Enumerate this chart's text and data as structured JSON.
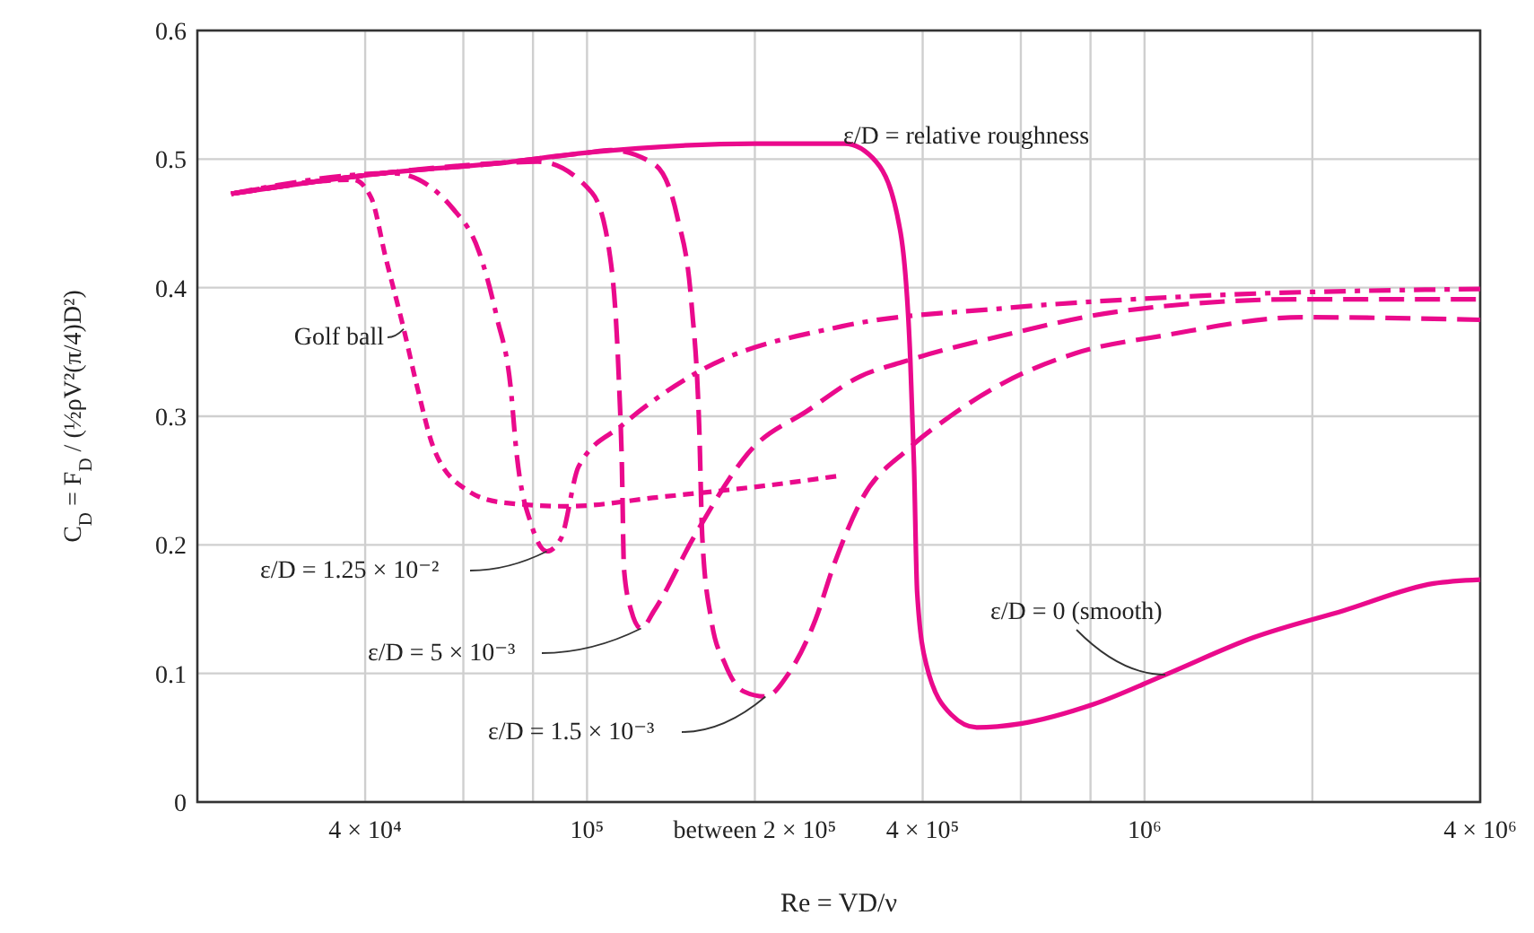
{
  "chart_data": {
    "type": "line",
    "xlabel": "Re = VD/ν",
    "ylabel": "C$_{D}$ = F$_{D}$ / (½ρV²(π/4)D²)",
    "log": "x",
    "grid": true,
    "xlim": [
      20000,
      4000000
    ],
    "xticks": [
      {
        "value": 40000,
        "label": "4 × 10⁴"
      },
      {
        "value": 60000,
        "label": null
      },
      {
        "value": 80000,
        "label": null
      },
      {
        "value": 100000,
        "label": "10⁵"
      },
      {
        "value": 200000,
        "label": "between 2 × 10⁵"
      },
      {
        "value": 400000,
        "label": "4 × 10⁵"
      },
      {
        "value": 600000,
        "label": null
      },
      {
        "value": 800000,
        "label": null
      },
      {
        "value": 1000000,
        "label": "10⁶"
      },
      {
        "value": 2000000,
        "label": null
      },
      {
        "value": 4000000,
        "label": "4 × 10⁶"
      }
    ],
    "ylim": [
      0,
      0.6
    ],
    "yticks": [
      0,
      0.1,
      0.2,
      0.3,
      0.4,
      0.5,
      0.6
    ],
    "annotations": [
      "ε/D = relative roughness"
    ],
    "series": [
      {
        "name": "ε/D = 0 (smooth)",
        "color": "#ea0a8c",
        "line_style": "solid",
        "x": [
          23000,
          43000,
          70000,
          100000,
          200000,
          290000,
          330000,
          365000,
          380000,
          386000,
          391000,
          406000,
          450000,
          500000,
          600000,
          810000,
          1090000,
          1570000,
          2280000,
          3300000,
          4000000
        ],
        "values": [
          0.473,
          0.489,
          0.497,
          0.505,
          0.512,
          0.512,
          0.498,
          0.443,
          0.345,
          0.261,
          0.163,
          0.107,
          0.068,
          0.058,
          0.061,
          0.076,
          0.099,
          0.128,
          0.149,
          0.17,
          0.173
        ]
      },
      {
        "name": "ε/D = 1.5 × 10⁻³",
        "color": "#ea0a8c",
        "line_style": "dashed",
        "x": [
          23000,
          43000,
          70000,
          100000,
          110000,
          132000,
          145000,
          154000,
          159000,
          161000,
          167000,
          177000,
          191000,
          209000,
          230000,
          257000,
          277000,
          309000,
          378000,
          448000,
          559000,
          752000,
          1090000,
          1920000,
          4000000
        ],
        "values": [
          0.473,
          0.489,
          0.497,
          0.505,
          0.507,
          0.496,
          0.456,
          0.387,
          0.289,
          0.205,
          0.142,
          0.107,
          0.086,
          0.082,
          0.1,
          0.142,
          0.184,
          0.233,
          0.275,
          0.3,
          0.326,
          0.349,
          0.363,
          0.377,
          0.375
        ]
      },
      {
        "name": "ε/D = 5 × 10⁻³",
        "color": "#ea0a8c",
        "line_style": "dashed",
        "x": [
          23000,
          43000,
          70000,
          81600,
          102000,
          110000,
          114000,
          115500,
          116500,
          120000,
          125000,
          132000,
          155000,
          198000,
          248000,
          309000,
          367000,
          559000,
          916000,
          1920000,
          4000000
        ],
        "values": [
          0.473,
          0.489,
          0.497,
          0.498,
          0.474,
          0.424,
          0.331,
          0.261,
          0.181,
          0.149,
          0.135,
          0.149,
          0.205,
          0.275,
          0.304,
          0.331,
          0.342,
          0.363,
          0.382,
          0.391,
          0.391
        ]
      },
      {
        "name": "ε/D = 1.25 × 10⁻²",
        "color": "#ea0a8c",
        "line_style": "dashdot",
        "x": [
          23000,
          45000,
          57600,
          64000,
          68900,
          73000,
          74600,
          79700,
          84700,
          89800,
          96600,
          115600,
          159000,
          287000,
          559000,
          1170000,
          4000000
        ],
        "values": [
          0.473,
          0.489,
          0.461,
          0.428,
          0.377,
          0.321,
          0.275,
          0.214,
          0.195,
          0.205,
          0.261,
          0.293,
          0.335,
          0.37,
          0.384,
          0.393,
          0.399
        ]
      },
      {
        "name": "Golf ball",
        "color": "#ea0a8c",
        "line_style": "dotted",
        "x": [
          23000,
          38100,
          41000,
          43500,
          46900,
          49700,
          53100,
          60700,
          70300,
          92500,
          134000,
          218000,
          287000
        ],
        "values": [
          0.473,
          0.484,
          0.47,
          0.424,
          0.368,
          0.321,
          0.275,
          0.243,
          0.233,
          0.23,
          0.237,
          0.247,
          0.254
        ]
      }
    ]
  }
}
